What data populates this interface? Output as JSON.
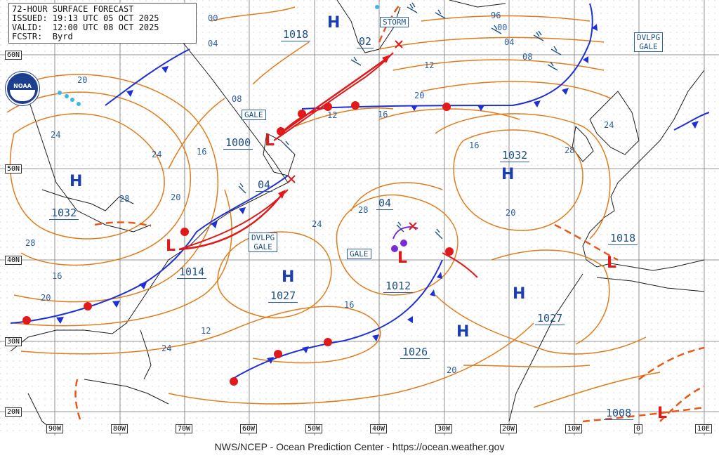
{
  "header": {
    "line1": "72-HOUR SURFACE FORECAST",
    "line2": "ISSUED: 19:13 UTC 05 OCT 2025",
    "line3": "VALID:  12:00 UTC 08 OCT 2025",
    "line4": "FCSTR:  Byrd"
  },
  "footer": "NWS/NCEP - Ocean Prediction Center - https://ocean.weather.gov",
  "latitude_labels": [
    "60N",
    "50N",
    "40N",
    "30N",
    "20N"
  ],
  "longitude_labels": [
    "90W",
    "80W",
    "70W",
    "60W",
    "50W",
    "40W",
    "30W",
    "20W",
    "10W",
    "0",
    "10E"
  ],
  "warnings": {
    "storm": "STORM",
    "gale_newfoundland": "GALE",
    "dvlpg_gale_atlantic": "DVLPG\nGALE",
    "gale_central": "GALE",
    "dvlpg_gale_europe": "DVLPG\nGALE"
  },
  "pressure_centers": {
    "high_greenland": {
      "symbol": "H",
      "value": "1018"
    },
    "low_iceland": {
      "symbol": "",
      "value": "02"
    },
    "low_labrador": {
      "symbol": "L",
      "value": "1000"
    },
    "low_newfoundland": {
      "symbol": "",
      "value": "04"
    },
    "high_great_lakes": {
      "symbol": "H",
      "value": "1032"
    },
    "low_us_coast": {
      "symbol": "L",
      "value": "1014"
    },
    "high_bermuda": {
      "symbol": "H",
      "value": "1027"
    },
    "low_central_atlantic": {
      "symbol": "L",
      "value": "1012"
    },
    "low_central_atlantic_top": {
      "symbol": "",
      "value": "04"
    },
    "high_azores": {
      "symbol": "H",
      "value": "1026"
    },
    "high_east": {
      "symbol": "H",
      "value": "1027"
    },
    "high_north_atlantic": {
      "symbol": "H",
      "value": "1032"
    },
    "low_iberia": {
      "symbol": "L",
      "value": "1018"
    },
    "low_africa": {
      "symbol": "L",
      "value": "1008"
    }
  },
  "isobar_labels": [
    "00",
    "04",
    "08",
    "12",
    "16",
    "20",
    "24",
    "28",
    "96",
    "00",
    "04",
    "08",
    "12",
    "16",
    "20",
    "24",
    "28",
    "20",
    "24",
    "28",
    "16",
    "20",
    "24",
    "28",
    "16",
    "20",
    "24",
    "12",
    "16",
    "20"
  ],
  "colors": {
    "isobar": "#e07c1a",
    "cold_front": "#1f2fd6",
    "warm_front": "#e01a1a",
    "trough": "#e8581a",
    "land": "#1a1a1a",
    "grid": "#7a7a7a",
    "label": "#2a5fa8"
  }
}
